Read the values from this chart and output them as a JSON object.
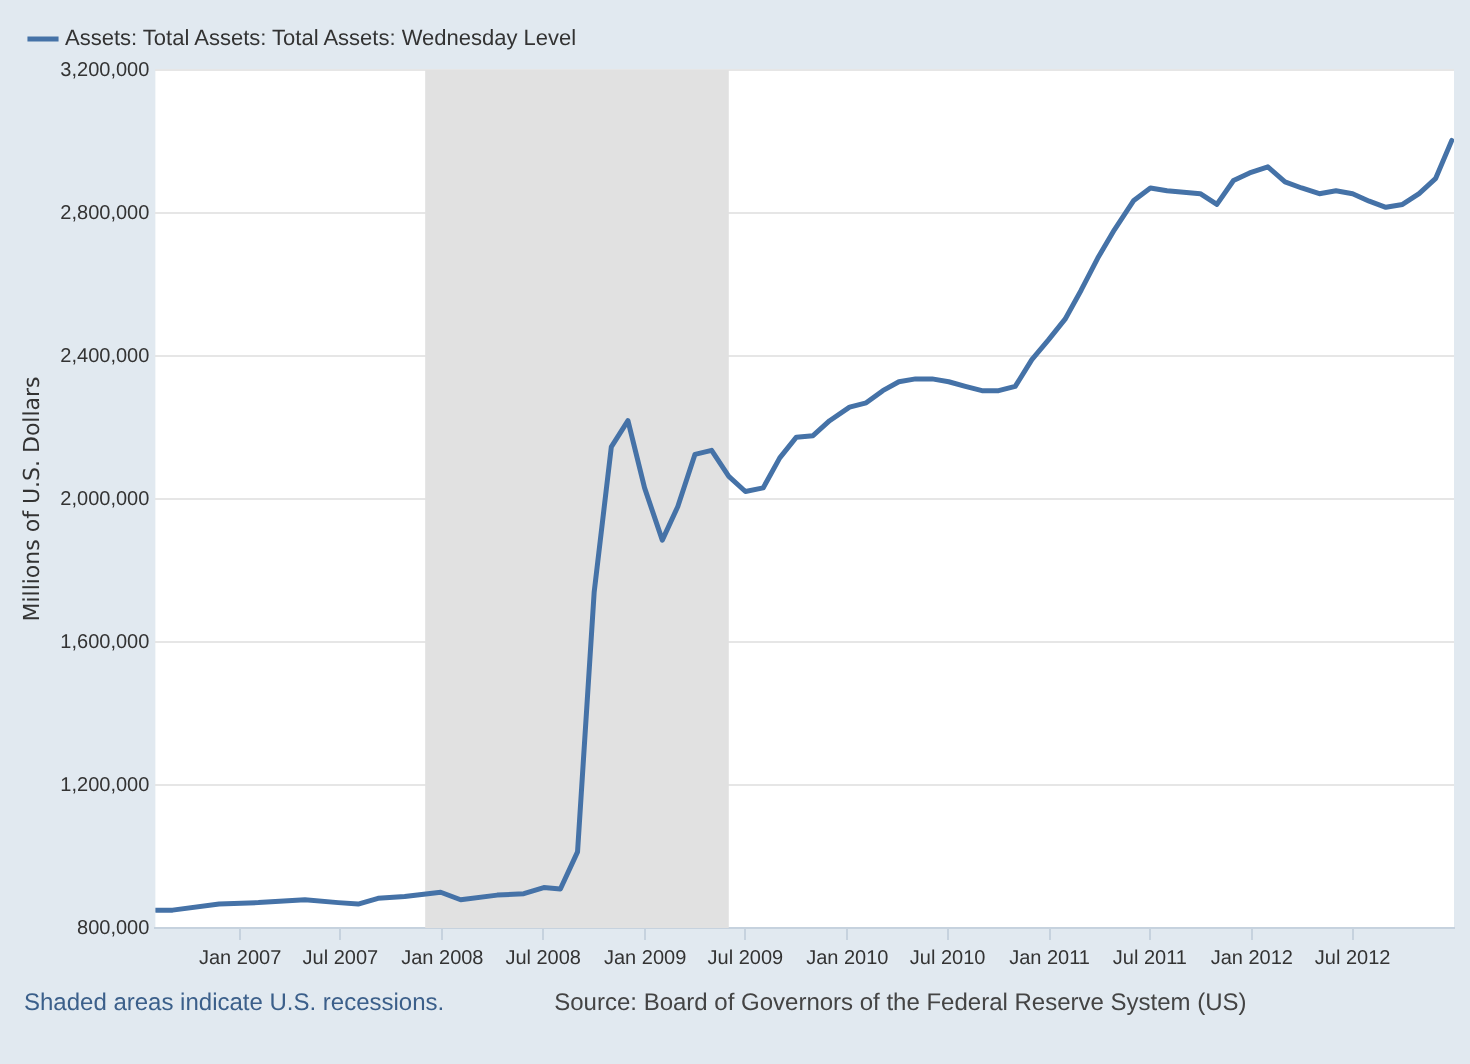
{
  "chart_data": {
    "type": "line",
    "ylabel": "Millions of U.S. Dollars",
    "x": [
      "2006-08-02",
      "2006-09-01",
      "2006-11-24",
      "2007-02-03",
      "2007-04-28",
      "2007-06-27",
      "2007-08-02",
      "2007-09-07",
      "2007-10-25",
      "2007-12-29",
      "2008-02-03",
      "2008-04-09",
      "2008-05-27",
      "2008-07-02",
      "2008-08-01",
      "2008-09-01",
      "2008-10-01",
      "2008-11-01",
      "2008-12-01",
      "2008-12-31",
      "2009-02-01",
      "2009-03-01",
      "2009-04-01",
      "2009-05-01",
      "2009-06-01",
      "2009-07-01",
      "2009-08-02",
      "2009-09-01",
      "2009-10-01",
      "2009-10-31",
      "2009-11-30",
      "2010-01-05",
      "2010-02-04",
      "2010-03-06",
      "2010-04-04",
      "2010-05-04",
      "2010-06-03",
      "2010-07-03",
      "2010-08-02",
      "2010-09-01",
      "2010-10-01",
      "2010-10-31",
      "2010-11-30",
      "2010-12-30",
      "2011-01-29",
      "2011-02-27",
      "2011-03-29",
      "2011-04-28",
      "2011-06-02",
      "2011-07-02",
      "2011-08-01",
      "2011-08-31",
      "2011-09-30",
      "2011-10-30",
      "2011-11-29",
      "2011-12-28",
      "2012-01-30",
      "2012-03-01",
      "2012-03-31",
      "2012-05-02",
      "2012-06-01",
      "2012-07-01",
      "2012-07-31",
      "2012-08-30",
      "2012-09-29",
      "2012-10-29",
      "2012-11-28",
      "2012-12-27"
    ],
    "series": [
      {
        "name": "Assets: Total Assets: Total Assets: Wednesday Level",
        "color": "#4572a7",
        "values": [
          850000,
          850000,
          867000,
          871000,
          879000,
          871000,
          867000,
          883000,
          888000,
          900000,
          879000,
          892000,
          896000,
          913000,
          909000,
          1013000,
          1739000,
          2146000,
          2219000,
          2031000,
          1885000,
          1979000,
          2125000,
          2136000,
          2063000,
          2021000,
          2031000,
          2115000,
          2173000,
          2177000,
          2219000,
          2257000,
          2269000,
          2303000,
          2328000,
          2336000,
          2336000,
          2328000,
          2315000,
          2303000,
          2303000,
          2315000,
          2390000,
          2445000,
          2503000,
          2584000,
          2674000,
          2753000,
          2835000,
          2870000,
          2862000,
          2858000,
          2854000,
          2824000,
          2891000,
          2912000,
          2929000,
          2887000,
          2870000,
          2854000,
          2862000,
          2854000,
          2833000,
          2816000,
          2824000,
          2854000,
          2897000,
          3003000
        ]
      }
    ],
    "xlim": [
      "2006-08-01",
      "2012-12-31"
    ],
    "xticks": [
      {
        "value": "2007-01-01",
        "label": "Jan 2007"
      },
      {
        "value": "2007-07-01",
        "label": "Jul 2007"
      },
      {
        "value": "2008-01-01",
        "label": "Jan 2008"
      },
      {
        "value": "2008-07-01",
        "label": "Jul 2008"
      },
      {
        "value": "2009-01-01",
        "label": "Jan 2009"
      },
      {
        "value": "2009-07-01",
        "label": "Jul 2009"
      },
      {
        "value": "2010-01-01",
        "label": "Jan 2010"
      },
      {
        "value": "2010-07-01",
        "label": "Jul 2010"
      },
      {
        "value": "2011-01-01",
        "label": "Jan 2011"
      },
      {
        "value": "2011-07-01",
        "label": "Jul 2011"
      },
      {
        "value": "2012-01-01",
        "label": "Jan 2012"
      },
      {
        "value": "2012-07-01",
        "label": "Jul 2012"
      }
    ],
    "ylim": [
      800000,
      3200000
    ],
    "yticks": [
      {
        "value": 800000,
        "label": "800,000"
      },
      {
        "value": 1200000,
        "label": "1,200,000"
      },
      {
        "value": 1600000,
        "label": "1,600,000"
      },
      {
        "value": 2000000,
        "label": "2,000,000"
      },
      {
        "value": 2400000,
        "label": "2,400,000"
      },
      {
        "value": 2800000,
        "label": "2,800,000"
      },
      {
        "value": 3200000,
        "label": "3,200,000"
      }
    ],
    "bands": [
      {
        "axis": "x",
        "from": "2007-12-01",
        "to": "2009-06-01",
        "color": "#e1e1e1"
      }
    ],
    "grid": "y",
    "legend": "top left",
    "marker": "none",
    "line_style": "solid",
    "annotations": [
      "Shaded areas indicate U.S. recessions.",
      "Source: Board of Governors of the Federal Reserve System (US)"
    ]
  }
}
